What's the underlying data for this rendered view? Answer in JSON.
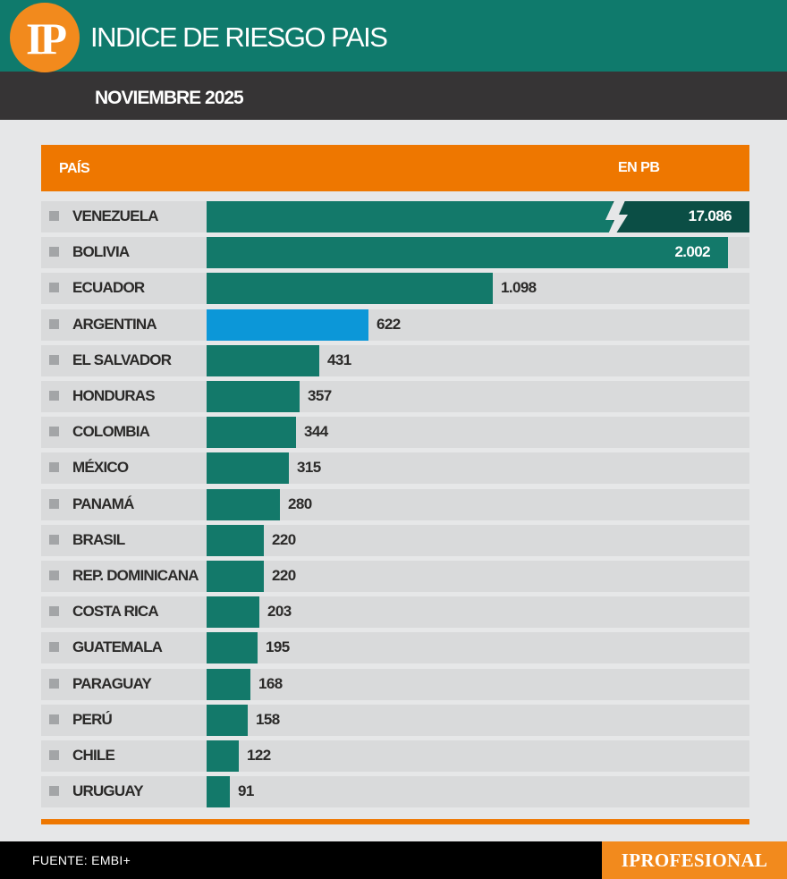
{
  "header": {
    "logo_text": "IP",
    "title": "INDICE DE RIESGO PAIS",
    "subtitle": "NOVIEMBRE 2025"
  },
  "table": {
    "column_country": "PAÍS",
    "column_value": "EN PB"
  },
  "chart_data": {
    "type": "bar",
    "orientation": "horizontal",
    "title": "INDICE DE RIESGO PAIS",
    "subtitle": "NOVIEMBRE 2025",
    "xlabel": "EN PB",
    "ylabel": "PAÍS",
    "axis_break": true,
    "categories": [
      "VENEZUELA",
      "BOLIVIA",
      "ECUADOR",
      "ARGENTINA",
      "EL SALVADOR",
      "HONDURAS",
      "COLOMBIA",
      "MÉXICO",
      "PANAMÁ",
      "BRASIL",
      "REP. DOMINICANA",
      "COSTA RICA",
      "GUATEMALA",
      "PARAGUAY",
      "PERÚ",
      "CHILE",
      "URUGUAY"
    ],
    "values": [
      17086,
      2002,
      1098,
      622,
      431,
      357,
      344,
      315,
      280,
      220,
      220,
      203,
      195,
      168,
      158,
      122,
      91
    ],
    "labels": [
      "17.086",
      "2.002",
      "1.098",
      "622",
      "431",
      "357",
      "344",
      "315",
      "280",
      "220",
      "220",
      "203",
      "195",
      "168",
      "158",
      "122",
      "91"
    ],
    "highlight": "ARGENTINA",
    "colors": {
      "bar": "#13796a",
      "highlight": "#0c97d8",
      "break_segment": "#0b4e45",
      "header": "#ee7700"
    }
  },
  "footer": {
    "source": "FUENTE: EMBI+",
    "brand": "IPROFESIONAL"
  }
}
